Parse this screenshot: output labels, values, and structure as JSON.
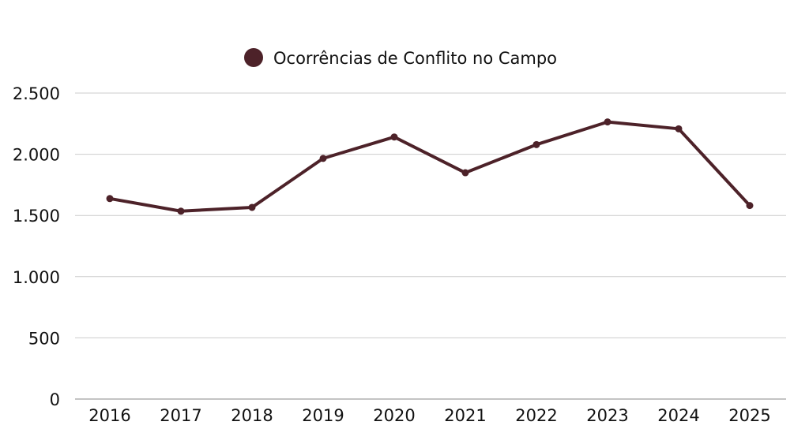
{
  "chart_data": {
    "type": "line",
    "title": "",
    "xlabel": "",
    "ylabel": "",
    "categories": [
      "2016",
      "2017",
      "2018",
      "2019",
      "2020",
      "2021",
      "2022",
      "2023",
      "2024",
      "2025"
    ],
    "series": [
      {
        "name": "Ocorrências de Conflito no Campo",
        "color": "#4d2229",
        "values": [
          1638,
          1535,
          1566,
          1966,
          2141,
          1849,
          2079,
          2264,
          2208,
          1581
        ]
      }
    ],
    "ylim": [
      0,
      2500
    ],
    "yticks": [
      0,
      500,
      1000,
      1500,
      2000,
      2500
    ],
    "ytick_labels": [
      "0",
      "500",
      "1.000",
      "1.500",
      "2.000",
      "2.500"
    ],
    "grid": "horizontal",
    "legend_position": "top-center",
    "gridline_color": "#cccccc"
  }
}
